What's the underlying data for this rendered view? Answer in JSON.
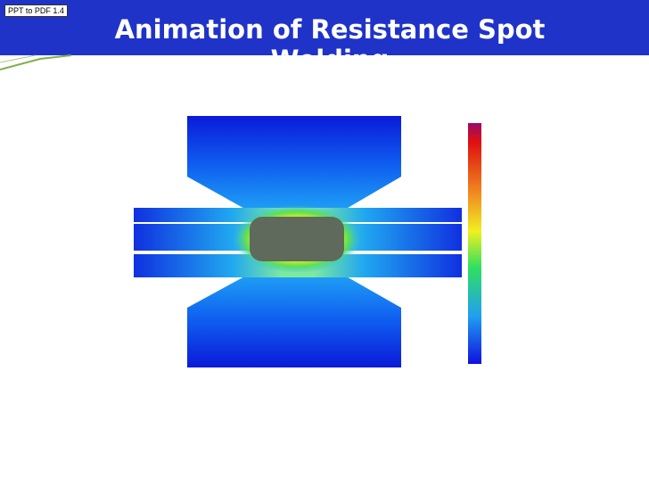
{
  "header": {
    "title": "Animation of Resistance Spot Welding",
    "watermark": "PPT to PDF 1.4"
  }
}
